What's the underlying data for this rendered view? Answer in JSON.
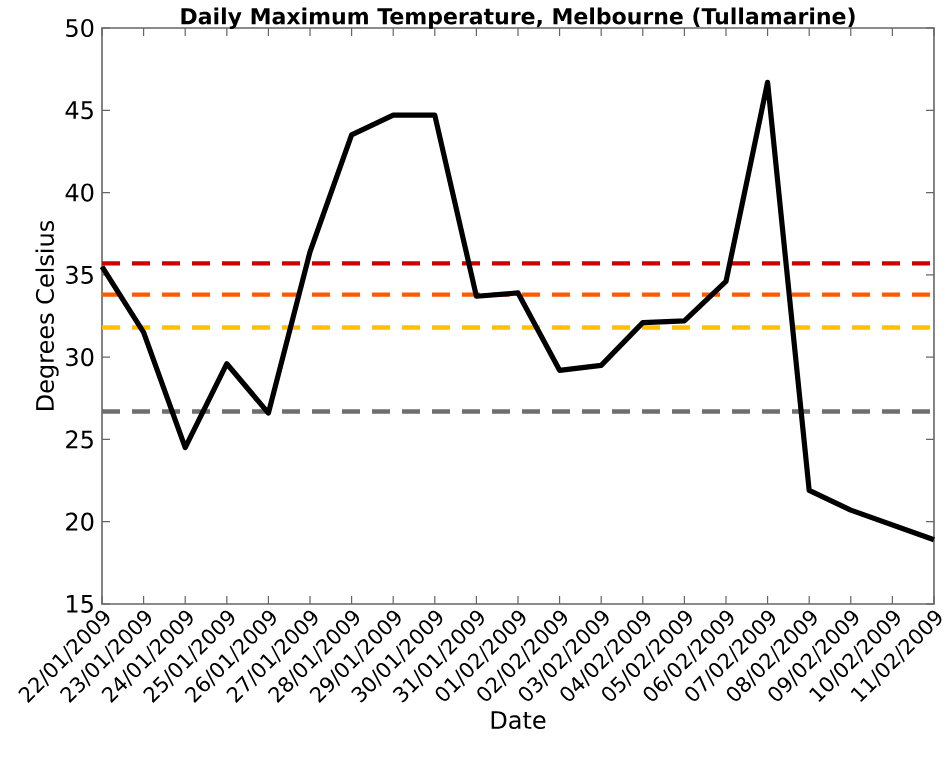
{
  "chart_data": {
    "type": "line",
    "title": "Daily Maximum Temperature, Melbourne (Tullamarine)",
    "xlabel": "Date",
    "ylabel": "Degrees Celsius",
    "categories": [
      "22/01/2009",
      "23/01/2009",
      "24/01/2009",
      "25/01/2009",
      "26/01/2009",
      "27/01/2009",
      "28/01/2009",
      "29/01/2009",
      "30/01/2009",
      "31/01/2009",
      "01/02/2009",
      "02/02/2009",
      "03/02/2009",
      "04/02/2009",
      "05/02/2009",
      "06/02/2009",
      "07/02/2009",
      "08/02/2009",
      "09/02/2009",
      "10/02/2009",
      "11/02/2009"
    ],
    "series": [
      {
        "color": "#000000",
        "values": [
          35.5,
          31.5,
          24.5,
          29.6,
          26.6,
          36.4,
          43.5,
          44.7,
          44.7,
          33.7,
          33.9,
          29.2,
          29.5,
          32.1,
          32.2,
          34.6,
          46.7,
          21.9,
          20.7,
          19.8,
          18.9
        ]
      }
    ],
    "ylim": [
      15,
      50
    ],
    "yticks": [
      15,
      20,
      25,
      30,
      35,
      40,
      45,
      50
    ],
    "ref_lines": [
      {
        "axis": "y",
        "value": 35.7,
        "color": "#cc0000",
        "line_style": "dashed"
      },
      {
        "axis": "y",
        "value": 33.8,
        "color": "#ff5a00",
        "line_style": "dashed"
      },
      {
        "axis": "y",
        "value": 31.8,
        "color": "#ffc000",
        "line_style": "dashed"
      },
      {
        "axis": "y",
        "value": 26.7,
        "color": "#6e6e6e",
        "line_style": "dashed"
      }
    ],
    "grid": false,
    "marker": "none",
    "line_style": "solid"
  }
}
